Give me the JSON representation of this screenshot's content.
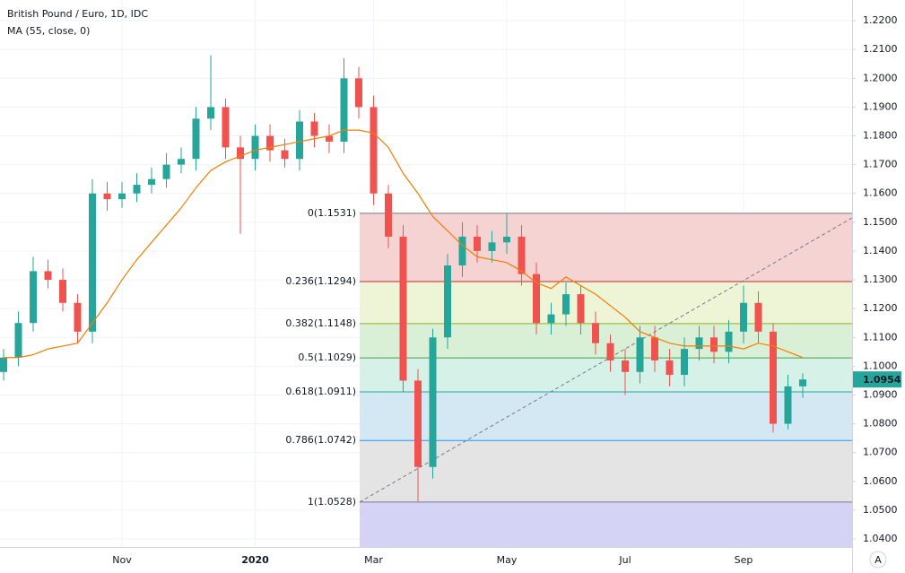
{
  "chart_data": {
    "type": "candlestick",
    "title": "British Pound / Euro, 1D, IDC",
    "indicator_label": "MA (55, close, 0)",
    "categories": [
      null,
      null,
      null,
      null,
      null,
      null,
      null,
      null,
      "Nov",
      null,
      null,
      null,
      null,
      null,
      null,
      null,
      null,
      "2020",
      null,
      null,
      null,
      null,
      null,
      null,
      null,
      "Mar",
      null,
      null,
      null,
      null,
      null,
      null,
      null,
      null,
      "May",
      null,
      null,
      null,
      null,
      null,
      null,
      null,
      "Jul",
      null,
      null,
      null,
      null,
      null,
      null,
      null,
      "Sep",
      null,
      null,
      null,
      null
    ],
    "open": [
      1.098,
      1.103,
      1.115,
      1.133,
      1.13,
      1.122,
      1.112,
      1.16,
      1.158,
      1.16,
      1.163,
      1.165,
      1.17,
      1.172,
      1.186,
      1.19,
      1.176,
      1.172,
      1.18,
      1.175,
      1.172,
      1.185,
      1.18,
      1.178,
      1.2,
      1.19,
      1.16,
      1.145,
      1.095,
      1.065,
      1.11,
      1.135,
      1.145,
      1.14,
      1.143,
      1.145,
      1.132,
      1.115,
      1.118,
      1.125,
      1.115,
      1.108,
      1.102,
      1.098,
      1.11,
      1.102,
      1.097,
      1.106,
      1.11,
      1.105,
      1.112,
      1.122,
      1.112,
      1.08,
      1.093
    ],
    "high": [
      1.106,
      1.119,
      1.138,
      1.137,
      1.134,
      1.125,
      1.165,
      1.164,
      1.164,
      1.167,
      1.169,
      1.174,
      1.176,
      1.19,
      1.208,
      1.193,
      1.18,
      1.184,
      1.184,
      1.179,
      1.189,
      1.188,
      1.184,
      1.207,
      1.204,
      1.194,
      1.163,
      1.149,
      1.099,
      1.113,
      1.139,
      1.15,
      1.149,
      1.147,
      1.153,
      1.149,
      1.136,
      1.122,
      1.129,
      1.128,
      1.119,
      1.111,
      1.106,
      1.114,
      1.114,
      1.106,
      1.11,
      1.114,
      1.114,
      1.116,
      1.128,
      1.126,
      1.115,
      1.097,
      1.0975
    ],
    "low": [
      1.095,
      1.1,
      1.112,
      1.127,
      1.119,
      1.108,
      1.108,
      1.154,
      1.155,
      1.157,
      1.16,
      1.162,
      1.167,
      1.168,
      1.182,
      1.172,
      1.146,
      1.168,
      1.171,
      1.169,
      1.168,
      1.176,
      1.174,
      1.174,
      1.186,
      1.156,
      1.141,
      1.091,
      1.053,
      1.061,
      1.106,
      1.131,
      1.136,
      1.136,
      1.139,
      1.128,
      1.111,
      1.111,
      1.114,
      1.111,
      1.104,
      1.098,
      1.09,
      1.094,
      1.098,
      1.093,
      1.093,
      1.102,
      1.101,
      1.101,
      1.108,
      1.108,
      1.077,
      1.078,
      1.089
    ],
    "close": [
      1.103,
      1.115,
      1.133,
      1.13,
      1.122,
      1.112,
      1.16,
      1.158,
      1.16,
      1.163,
      1.165,
      1.17,
      1.172,
      1.186,
      1.19,
      1.176,
      1.172,
      1.18,
      1.175,
      1.172,
      1.185,
      1.18,
      1.178,
      1.2,
      1.19,
      1.16,
      1.145,
      1.095,
      1.065,
      1.11,
      1.135,
      1.145,
      1.14,
      1.143,
      1.145,
      1.132,
      1.115,
      1.118,
      1.125,
      1.115,
      1.108,
      1.102,
      1.098,
      1.11,
      1.102,
      1.097,
      1.106,
      1.11,
      1.105,
      1.112,
      1.122,
      1.112,
      1.08,
      1.093,
      1.0954
    ],
    "up_color": "#26a69a",
    "down_color": "#ef5350",
    "ma": {
      "color": "#f57c00",
      "values": [
        1.103,
        1.103,
        1.104,
        1.106,
        1.107,
        1.108,
        1.115,
        1.122,
        1.13,
        1.137,
        1.143,
        1.149,
        1.155,
        1.162,
        1.168,
        1.171,
        1.173,
        1.175,
        1.176,
        1.177,
        1.178,
        1.179,
        1.18,
        1.182,
        1.182,
        1.181,
        1.176,
        1.167,
        1.16,
        1.152,
        1.147,
        1.142,
        1.138,
        1.137,
        1.136,
        1.133,
        1.129,
        1.127,
        1.131,
        1.128,
        1.125,
        1.121,
        1.117,
        1.112,
        1.11,
        1.108,
        1.107,
        1.107,
        1.107,
        1.107,
        1.106,
        1.108,
        1.107,
        1.105,
        1.103
      ]
    },
    "fib_levels": [
      {
        "label": "0(1.1531)",
        "value": 1.1531,
        "color": "#787b86",
        "fill": "#f5d3d3"
      },
      {
        "label": "0.236(1.1294)",
        "value": 1.1294,
        "color": "#c62828",
        "fill": "#eef4d6"
      },
      {
        "label": "0.382(1.1148)",
        "value": 1.1148,
        "color": "#8bb31f",
        "fill": "#daf0d6"
      },
      {
        "label": "0.5(1.1029)",
        "value": 1.1029,
        "color": "#43a047",
        "fill": "#d5f1e8"
      },
      {
        "label": "0.618(1.0911)",
        "value": 1.0911,
        "color": "#26a69a",
        "fill": "#d3e8f3"
      },
      {
        "label": "0.786(1.0742)",
        "value": 1.0742,
        "color": "#2196f3",
        "fill": "#e4e4e4"
      },
      {
        "label": "1(1.0528)",
        "value": 1.0528,
        "color": "#787b86",
        "fill": "#d4d2f5"
      }
    ],
    "ylim": [
      1.0372,
      1.2272
    ],
    "yticks": [
      {
        "value": 1.22,
        "label": "1.2200"
      },
      {
        "value": 1.21,
        "label": "1.2100"
      },
      {
        "value": 1.2,
        "label": "1.2000"
      },
      {
        "value": 1.19,
        "label": "1.1900"
      },
      {
        "value": 1.18,
        "label": "1.1800"
      },
      {
        "value": 1.17,
        "label": "1.1700"
      },
      {
        "value": 1.16,
        "label": "1.1600"
      },
      {
        "value": 1.15,
        "label": "1.1500"
      },
      {
        "value": 1.14,
        "label": "1.1400"
      },
      {
        "value": 1.13,
        "label": "1.1300"
      },
      {
        "value": 1.12,
        "label": "1.1200"
      },
      {
        "value": 1.11,
        "label": "1.1100"
      },
      {
        "value": 1.1,
        "label": "1.1000"
      },
      {
        "value": 1.09,
        "label": "1.0900"
      },
      {
        "value": 1.08,
        "label": "1.0800"
      },
      {
        "value": 1.07,
        "label": "1.0700"
      },
      {
        "value": 1.06,
        "label": "1.0600"
      },
      {
        "value": 1.05,
        "label": "1.0500"
      },
      {
        "value": 1.04,
        "label": "1.0400"
      }
    ],
    "grid": true,
    "scale_button": "A"
  }
}
